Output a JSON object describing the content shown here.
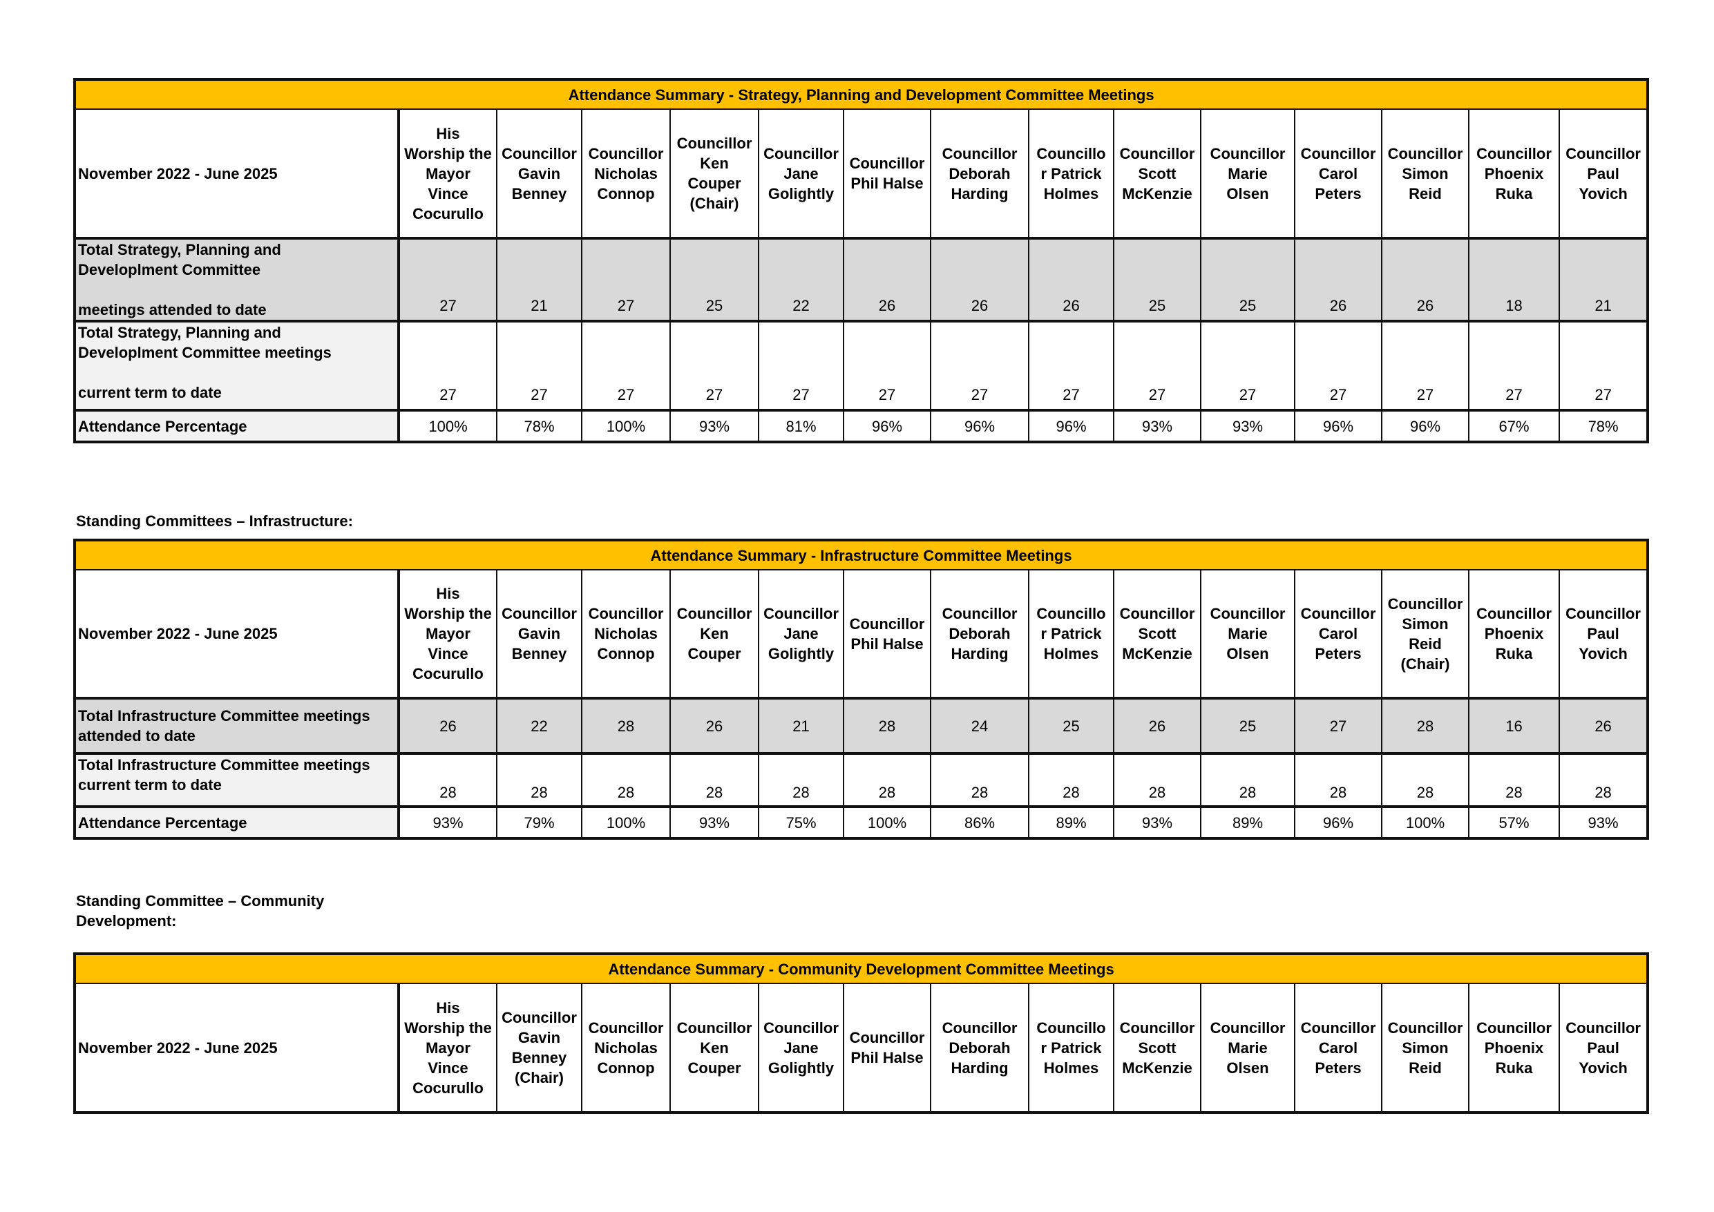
{
  "colors": {
    "title_bar": "#ffc000",
    "attended_row": "#d9d9d9",
    "label_bg": "#f2f2f2"
  },
  "period": "November 2022 - June 2025",
  "tables": [
    {
      "title": "Attendance Summary - Strategy, Planning and Development Committee Meetings",
      "columns": [
        [
          "His",
          "Worship the",
          "Mayor",
          "Vince",
          "Cocurullo"
        ],
        [
          "Councillor",
          "Gavin",
          "Benney"
        ],
        [
          "Councillor",
          "Nicholas",
          "Connop"
        ],
        [
          "Councillor",
          "Ken",
          "Couper",
          "(Chair)"
        ],
        [
          "Councillor",
          "Jane",
          "Golightly"
        ],
        [
          "Councillor",
          "Phil Halse"
        ],
        [
          "Councillor",
          "Deborah",
          "Harding"
        ],
        [
          "Councillo",
          "r Patrick",
          "Holmes"
        ],
        [
          "Councillor",
          "Scott",
          "McKenzie"
        ],
        [
          "Councillor",
          "Marie",
          "Olsen"
        ],
        [
          "Councillor",
          "Carol",
          "Peters"
        ],
        [
          "Councillor",
          "Simon",
          "Reid"
        ],
        [
          "Councillor",
          "Phoenix",
          "Ruka"
        ],
        [
          "Councillor",
          "Paul",
          "Yovich"
        ]
      ],
      "rows": [
        {
          "label": [
            "Total Strategy, Planning and",
            "Developlment Committee",
            "",
            "meetings attended to date"
          ],
          "values": [
            "27",
            "21",
            "27",
            "25",
            "22",
            "26",
            "26",
            "26",
            "25",
            "25",
            "26",
            "26",
            "18",
            "21"
          ]
        },
        {
          "label": [
            "Total Strategy, Planning and",
            "Developlment Committee meetings",
            "",
            "current term to date"
          ],
          "values": [
            "27",
            "27",
            "27",
            "27",
            "27",
            "27",
            "27",
            "27",
            "27",
            "27",
            "27",
            "27",
            "27",
            "27"
          ]
        },
        {
          "label": [
            "Attendance Percentage"
          ],
          "values": [
            "100%",
            "78%",
            "100%",
            "93%",
            "81%",
            "96%",
            "96%",
            "96%",
            "93%",
            "93%",
            "96%",
            "96%",
            "67%",
            "78%"
          ]
        }
      ]
    },
    {
      "heading": [
        "Standing Committees – Infrastructure:"
      ],
      "title": "Attendance Summary - Infrastructure Committee Meetings",
      "columns": [
        [
          "His",
          "Worship the",
          "Mayor",
          "Vince",
          "Cocurullo"
        ],
        [
          "Councillor",
          "Gavin",
          "Benney"
        ],
        [
          "Councillor",
          "Nicholas",
          "Connop"
        ],
        [
          "Councillor",
          "Ken",
          "Couper"
        ],
        [
          "Councillor",
          "Jane",
          "Golightly"
        ],
        [
          "Councillor",
          "Phil Halse"
        ],
        [
          "Councillor",
          "Deborah",
          "Harding"
        ],
        [
          "Councillo",
          "r Patrick",
          "Holmes"
        ],
        [
          "Councillor",
          "Scott",
          "McKenzie"
        ],
        [
          "Councillor",
          "Marie",
          "Olsen"
        ],
        [
          "Councillor",
          "Carol",
          "Peters"
        ],
        [
          "Councillor",
          "Simon",
          "Reid",
          "(Chair)"
        ],
        [
          "Councillor",
          "Phoenix",
          "Ruka"
        ],
        [
          "Councillor",
          "Paul",
          "Yovich"
        ]
      ],
      "rows": [
        {
          "label": [
            "Total Infrastructure Committee meetings",
            "attended to date"
          ],
          "values": [
            "26",
            "22",
            "28",
            "26",
            "21",
            "28",
            "24",
            "25",
            "26",
            "25",
            "27",
            "28",
            "16",
            "26"
          ]
        },
        {
          "label": [
            "Total Infrastructure Committee meetings",
            "current term to date"
          ],
          "values": [
            "28",
            "28",
            "28",
            "28",
            "28",
            "28",
            "28",
            "28",
            "28",
            "28",
            "28",
            "28",
            "28",
            "28"
          ]
        },
        {
          "label": [
            "Attendance Percentage"
          ],
          "values": [
            "93%",
            "79%",
            "100%",
            "93%",
            "75%",
            "100%",
            "86%",
            "89%",
            "93%",
            "89%",
            "96%",
            "100%",
            "57%",
            "93%"
          ]
        }
      ]
    },
    {
      "heading": [
        "Standing Committee – Community",
        "Development:"
      ],
      "title": "Attendance Summary - Community Development Committee Meetings",
      "columns": [
        [
          "His",
          "Worship the",
          "Mayor",
          "Vince",
          "Cocurullo"
        ],
        [
          "Councillor",
          "Gavin",
          "Benney",
          "(Chair)"
        ],
        [
          "Councillor",
          "Nicholas",
          "Connop"
        ],
        [
          "Councillor",
          "Ken",
          "Couper"
        ],
        [
          "Councillor",
          "Jane",
          "Golightly"
        ],
        [
          "Councillor",
          "Phil Halse"
        ],
        [
          "Councillor",
          "Deborah",
          "Harding"
        ],
        [
          "Councillo",
          "r Patrick",
          "Holmes"
        ],
        [
          "Councillor",
          "Scott",
          "McKenzie"
        ],
        [
          "Councillor",
          "Marie",
          "Olsen"
        ],
        [
          "Councillor",
          "Carol",
          "Peters"
        ],
        [
          "Councillor",
          "Simon",
          "Reid"
        ],
        [
          "Councillor",
          "Phoenix",
          "Ruka"
        ],
        [
          "Councillor",
          "Paul",
          "Yovich"
        ]
      ],
      "rows": []
    }
  ]
}
